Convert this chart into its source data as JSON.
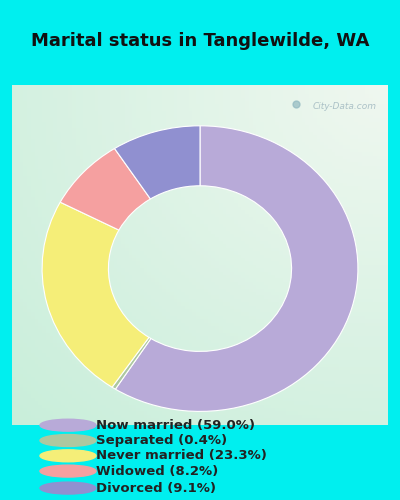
{
  "title": "Marital status in Tanglewilde, WA",
  "title_fontsize": 13,
  "bg_cyan": "#00EFEF",
  "chart_bg_color1": "#c8e6d0",
  "chart_bg_color2": "#e8f4f0",
  "chart_bg_color3": "#f0f8f4",
  "slices": [
    59.0,
    0.4,
    23.3,
    8.2,
    9.1
  ],
  "labels": [
    "Now married (59.0%)",
    "Separated (0.4%)",
    "Never married (23.3%)",
    "Widowed (8.2%)",
    "Divorced (9.1%)"
  ],
  "colors": [
    "#b8aad8",
    "#adc8a0",
    "#f5ee78",
    "#f5a0a0",
    "#9090d0"
  ],
  "watermark": "City-Data.com"
}
